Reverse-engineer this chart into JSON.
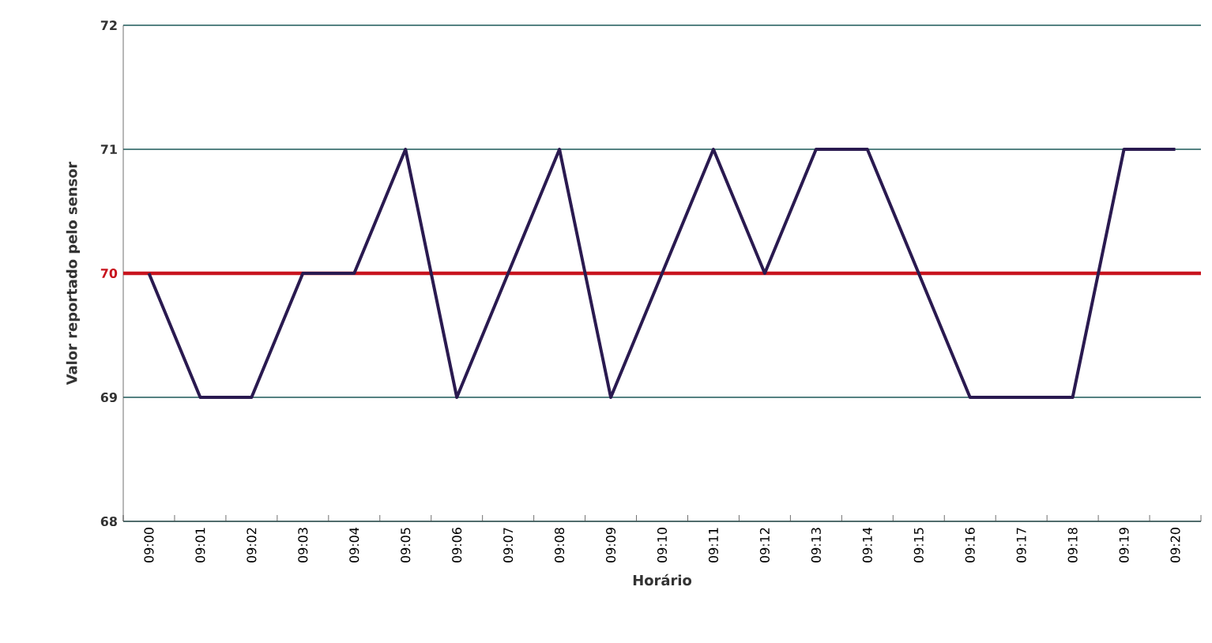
{
  "chart_data": {
    "type": "line",
    "xlabel": "Horário",
    "ylabel": "Valor reportado pelo sensor",
    "categories": [
      "09:00",
      "09:01",
      "09:02",
      "09:03",
      "09:04",
      "09:05",
      "09:06",
      "09:07",
      "09:08",
      "09:09",
      "09:10",
      "09:11",
      "09:12",
      "09:13",
      "09:14",
      "09:15",
      "09:16",
      "09:17",
      "09:18",
      "09:19",
      "09:20"
    ],
    "series": [
      {
        "color": "#2a1a50",
        "values": [
          70,
          69,
          69,
          70,
          70,
          71,
          69,
          70,
          71,
          69,
          70,
          71,
          70,
          71,
          71,
          70,
          69,
          69,
          69,
          71,
          71
        ]
      }
    ],
    "ylim": [
      68,
      72
    ],
    "yticks": [
      68,
      69,
      70,
      71,
      72
    ],
    "grid": "y",
    "marker": "none",
    "line_style": "solid",
    "ref_lines": [
      {
        "axis": "y",
        "value": 70,
        "color": "#c8141e"
      }
    ]
  }
}
